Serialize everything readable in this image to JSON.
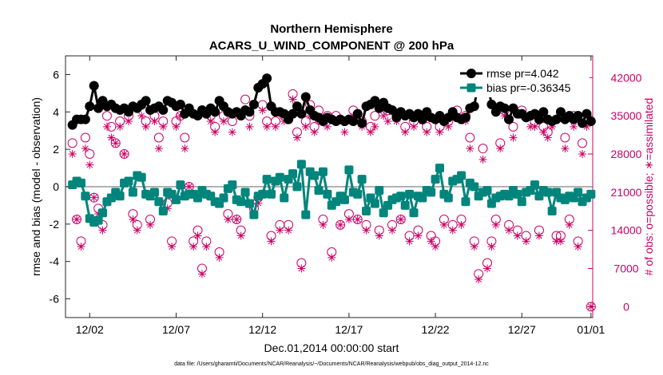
{
  "chart_data": {
    "type": "line",
    "title": "Northern Hemisphere",
    "subtitle": "ACARS_U_WIND_COMPONENT @ 200 hPa",
    "xlabel": "Dec.01,2014 00:00:00 start",
    "ylabel": "rmse and bias (model - observation)",
    "ylabel_right": "# of obs: o=possible; ∗=assimilated",
    "xlim": [
      0.6,
      31.1
    ],
    "ylim": [
      -7,
      7
    ],
    "ylim_right": [
      -2000,
      46000
    ],
    "x_ticks": [
      {
        "value": 2,
        "label": "12/02"
      },
      {
        "value": 7,
        "label": "12/07"
      },
      {
        "value": 12,
        "label": "12/12"
      },
      {
        "value": 17,
        "label": "12/17"
      },
      {
        "value": 22,
        "label": "12/22"
      },
      {
        "value": 27,
        "label": "12/27"
      },
      {
        "value": 31,
        "label": "01/01"
      }
    ],
    "y_ticks": [
      {
        "value": 6,
        "label": "6"
      },
      {
        "value": 4,
        "label": "4"
      },
      {
        "value": 2,
        "label": "2"
      },
      {
        "value": 0,
        "label": "0"
      },
      {
        "value": -2,
        "label": "-2"
      },
      {
        "value": -4,
        "label": "-4"
      },
      {
        "value": -6,
        "label": "-6"
      }
    ],
    "y_ticks_right": [
      {
        "value": 42000,
        "label": "42000"
      },
      {
        "value": 35000,
        "label": "35000"
      },
      {
        "value": 28000,
        "label": "28000"
      },
      {
        "value": 21000,
        "label": "21000"
      },
      {
        "value": 14000,
        "label": "14000"
      },
      {
        "value": 7000,
        "label": "7000"
      },
      {
        "value": 0,
        "label": "0"
      }
    ],
    "zero_line": 0,
    "series": [
      {
        "name": "rmse",
        "legend": "rmse pr=4.042",
        "color": "#000000",
        "marker": "circle",
        "x": [
          1.0,
          1.25,
          1.5,
          1.75,
          2.0,
          2.25,
          2.5,
          2.75,
          3.0,
          3.25,
          3.5,
          3.75,
          4.0,
          4.25,
          4.5,
          4.75,
          5.0,
          5.25,
          5.5,
          5.75,
          6.0,
          6.25,
          6.5,
          6.75,
          7.0,
          7.25,
          7.5,
          7.75,
          8.0,
          8.25,
          8.5,
          8.75,
          9.0,
          9.25,
          9.5,
          9.75,
          10.0,
          10.25,
          10.5,
          10.75,
          11.0,
          11.25,
          11.5,
          11.75,
          12.0,
          12.25,
          12.5,
          12.75,
          13.0,
          13.25,
          13.5,
          13.75,
          14.0,
          14.25,
          14.5,
          14.75,
          15.0,
          15.25,
          15.5,
          15.75,
          16.0,
          16.25,
          16.5,
          16.75,
          17.0,
          17.25,
          17.5,
          17.75,
          18.0,
          18.25,
          18.5,
          18.75,
          19.0,
          19.25,
          19.5,
          19.75,
          20.0,
          20.25,
          20.5,
          20.75,
          21.0,
          21.25,
          21.5,
          21.75,
          22.0,
          22.25,
          22.5,
          22.75,
          23.0,
          23.25,
          23.5,
          23.75,
          24.0,
          24.25,
          24.5,
          24.75,
          25.0,
          25.25,
          25.5,
          25.75,
          26.0,
          26.25,
          26.5,
          26.75,
          27.0,
          27.25,
          27.5,
          27.75,
          28.0,
          28.25,
          28.5,
          28.75,
          29.0,
          29.25,
          29.5,
          29.75,
          30.0,
          30.25,
          30.5,
          30.75,
          31.0
        ],
        "values": [
          3.3,
          3.6,
          3.6,
          3.6,
          4.3,
          5.4,
          4.2,
          4.6,
          4.3,
          4.4,
          4.2,
          4.1,
          4.2,
          4.0,
          4.3,
          4.2,
          4.4,
          4.6,
          4.1,
          4.2,
          4.3,
          4.1,
          4.6,
          4.5,
          4.3,
          4.4,
          3.9,
          4.2,
          3.9,
          3.8,
          4.1,
          3.9,
          4.2,
          4.0,
          4.6,
          4.3,
          4.0,
          3.9,
          4.0,
          3.8,
          4.1,
          4.0,
          4.4,
          5.3,
          5.5,
          5.8,
          4.3,
          4.0,
          4.0,
          3.9,
          3.6,
          3.9,
          4.3,
          3.9,
          4.8,
          4.1,
          3.8,
          3.7,
          3.5,
          3.7,
          3.6,
          3.5,
          3.6,
          3.5,
          3.6,
          3.5,
          3.9,
          3.4,
          4.3,
          4.4,
          4.6,
          4.2,
          4.5,
          4.2,
          4.1,
          3.7,
          4.0,
          3.8,
          3.9,
          3.7,
          3.9,
          3.6,
          4.0,
          3.7,
          3.6,
          3.8,
          3.5,
          3.7,
          4.0,
          3.7,
          3.6,
          3.7,
          4.2,
          4.3,
          5.7,
          6.0,
          5.6,
          4.4,
          4.0,
          4.3,
          4.2,
          3.6,
          4.2,
          3.9,
          3.9,
          3.7,
          3.8,
          3.9,
          3.6,
          4.0,
          3.6,
          3.5,
          3.6,
          4.0,
          3.6,
          3.8,
          3.6,
          3.8,
          3.4,
          3.9,
          3.5
        ]
      },
      {
        "name": "bias",
        "legend": "bias pr=-0.36345",
        "color": "#00857c",
        "marker": "square",
        "x": [
          1.0,
          1.25,
          1.5,
          1.75,
          2.0,
          2.25,
          2.5,
          2.75,
          3.0,
          3.25,
          3.5,
          3.75,
          4.0,
          4.25,
          4.5,
          4.75,
          5.0,
          5.25,
          5.5,
          5.75,
          6.0,
          6.25,
          6.5,
          6.75,
          7.0,
          7.25,
          7.5,
          7.75,
          8.0,
          8.25,
          8.5,
          8.75,
          9.0,
          9.25,
          9.5,
          9.75,
          10.0,
          10.25,
          10.5,
          10.75,
          11.0,
          11.25,
          11.5,
          11.75,
          12.0,
          12.25,
          12.5,
          12.75,
          13.0,
          13.25,
          13.5,
          13.75,
          14.0,
          14.25,
          14.5,
          14.75,
          15.0,
          15.25,
          15.5,
          15.75,
          16.0,
          16.25,
          16.5,
          16.75,
          17.0,
          17.25,
          17.5,
          17.75,
          18.0,
          18.25,
          18.5,
          18.75,
          19.0,
          19.25,
          19.5,
          19.75,
          20.0,
          20.25,
          20.5,
          20.75,
          21.0,
          21.25,
          21.5,
          21.75,
          22.0,
          22.25,
          22.5,
          22.75,
          23.0,
          23.25,
          23.5,
          23.75,
          24.0,
          24.25,
          24.5,
          24.75,
          25.0,
          25.25,
          25.5,
          25.75,
          26.0,
          26.25,
          26.5,
          26.75,
          27.0,
          27.25,
          27.5,
          27.75,
          28.0,
          28.25,
          28.5,
          28.75,
          29.0,
          29.25,
          29.5,
          29.75,
          30.0,
          30.25,
          30.5,
          30.75,
          31.0
        ],
        "values": [
          0.1,
          0.3,
          0.2,
          -0.5,
          -1.7,
          -1.9,
          -1.8,
          -1.4,
          -0.8,
          -0.6,
          -0.3,
          -0.5,
          0.2,
          0.3,
          -0.3,
          0.6,
          0.5,
          -0.4,
          -0.5,
          -0.3,
          -0.8,
          -1.3,
          -0.3,
          -0.4,
          -0.7,
          0.1,
          -0.5,
          -0.4,
          -0.4,
          -0.6,
          -0.2,
          -0.4,
          -0.5,
          -0.8,
          -0.9,
          -0.6,
          -0.1,
          0.1,
          -0.7,
          -0.8,
          -0.3,
          -0.9,
          -1.5,
          -0.5,
          -0.4,
          0.4,
          -0.4,
          0.3,
          0.5,
          -0.6,
          0.4,
          0.7,
          0.0,
          1.2,
          -1.5,
          0.8,
          0.6,
          -0.2,
          0.8,
          -0.4,
          -1.0,
          -0.8,
          -0.5,
          -0.7,
          0.9,
          -0.3,
          -0.4,
          0.4,
          -1.3,
          -0.6,
          -0.9,
          -0.2,
          -1.4,
          -1.0,
          -0.7,
          -0.6,
          -0.5,
          -1.0,
          -0.4,
          -1.4,
          -0.5,
          -0.6,
          -0.2,
          -0.3,
          0.4,
          1.0,
          -0.4,
          -0.6,
          0.3,
          0.4,
          0.6,
          -0.8,
          0.2,
          0.0,
          -0.5,
          -0.3,
          -0.2,
          -0.9,
          -0.6,
          -0.5,
          -0.4,
          -0.5,
          -0.2,
          -0.4,
          -0.8,
          -0.3,
          -0.2,
          0.1,
          -0.5,
          -0.2,
          -0.3,
          -1.3,
          -0.3,
          -0.6,
          -0.7,
          -0.5,
          -0.6,
          -0.3,
          -0.8,
          -0.6,
          -0.4
        ]
      },
      {
        "name": "obs possible",
        "legend": "",
        "color": "#cc0066",
        "marker": "open-circle",
        "axis": "right",
        "x": [
          1.0,
          1.25,
          1.5,
          1.75,
          2.0,
          2.25,
          2.5,
          2.75,
          3.0,
          3.25,
          3.5,
          3.75,
          4.0,
          4.25,
          4.5,
          4.75,
          5.0,
          5.25,
          5.5,
          5.75,
          6.0,
          6.25,
          6.5,
          6.75,
          7.0,
          7.25,
          7.5,
          7.75,
          8.0,
          8.25,
          8.5,
          8.75,
          9.0,
          9.25,
          9.5,
          9.75,
          10.0,
          10.25,
          10.5,
          10.75,
          11.0,
          11.25,
          11.5,
          11.75,
          12.0,
          12.25,
          12.5,
          12.75,
          13.0,
          13.25,
          13.5,
          13.75,
          14.0,
          14.25,
          14.5,
          14.75,
          15.0,
          15.25,
          15.5,
          15.75,
          16.0,
          16.25,
          16.5,
          16.75,
          17.0,
          17.25,
          17.5,
          17.75,
          18.0,
          18.25,
          18.5,
          18.75,
          19.0,
          19.25,
          19.5,
          19.75,
          20.0,
          20.25,
          20.5,
          20.75,
          21.0,
          21.25,
          21.5,
          21.75,
          22.0,
          22.25,
          22.5,
          22.75,
          23.0,
          23.25,
          23.5,
          23.75,
          24.0,
          24.25,
          24.5,
          24.75,
          25.0,
          25.25,
          25.5,
          25.75,
          26.0,
          26.25,
          26.5,
          26.75,
          27.0,
          27.25,
          27.5,
          27.75,
          28.0,
          28.25,
          28.5,
          28.75,
          29.0,
          29.25,
          29.5,
          29.75,
          30.0,
          30.25,
          30.5,
          30.75,
          31.0
        ],
        "values": [
          30000,
          16000,
          12000,
          31000,
          28000,
          20000,
          18000,
          15000,
          35000,
          33000,
          30000,
          34000,
          28000,
          35000,
          17000,
          15000,
          37000,
          34000,
          16000,
          35000,
          31000,
          34000,
          19000,
          12000,
          34000,
          35000,
          31000,
          22000,
          12000,
          14000,
          7000,
          12000,
          35000,
          33000,
          10000,
          35000,
          17000,
          34000,
          16000,
          14000,
          38000,
          35000,
          18000,
          20000,
          37000,
          34000,
          13000,
          34000,
          15000,
          35000,
          15000,
          39000,
          32000,
          8000,
          34000,
          37000,
          33000,
          36000,
          16000,
          35000,
          10000,
          35000,
          15000,
          34000,
          17000,
          36000,
          16000,
          34000,
          15000,
          33000,
          35000,
          14000,
          37000,
          36000,
          15000,
          35000,
          16000,
          33000,
          13000,
          34000,
          14000,
          35000,
          33000,
          13000,
          12000,
          33000,
          16000,
          34000,
          15000,
          36000,
          16000,
          35000,
          31000,
          12000,
          6000,
          29000,
          8000,
          12000,
          16000,
          30000,
          36000,
          15000,
          33000,
          14000,
          36000,
          13000,
          35000,
          34000,
          14000,
          33000,
          32000,
          34000,
          13000,
          13000,
          31000,
          16000,
          35000,
          12000,
          30000,
          34000,
          0
        ]
      },
      {
        "name": "obs assimilated",
        "legend": "",
        "color": "#cc0066",
        "marker": "asterisk",
        "axis": "right",
        "x": [
          1.0,
          1.25,
          1.5,
          1.75,
          2.0,
          2.25,
          2.5,
          2.75,
          3.0,
          3.25,
          3.5,
          3.75,
          4.0,
          4.25,
          4.5,
          4.75,
          5.0,
          5.25,
          5.5,
          5.75,
          6.0,
          6.25,
          6.5,
          6.75,
          7.0,
          7.25,
          7.5,
          7.75,
          8.0,
          8.25,
          8.5,
          8.75,
          9.0,
          9.25,
          9.5,
          9.75,
          10.0,
          10.25,
          10.5,
          10.75,
          11.0,
          11.25,
          11.5,
          11.75,
          12.0,
          12.25,
          12.5,
          12.75,
          13.0,
          13.25,
          13.5,
          13.75,
          14.0,
          14.25,
          14.5,
          14.75,
          15.0,
          15.25,
          15.5,
          15.75,
          16.0,
          16.25,
          16.5,
          16.75,
          17.0,
          17.25,
          17.5,
          17.75,
          18.0,
          18.25,
          18.5,
          18.75,
          19.0,
          19.25,
          19.5,
          19.75,
          20.0,
          20.25,
          20.5,
          20.75,
          21.0,
          21.25,
          21.5,
          21.75,
          22.0,
          22.25,
          22.5,
          22.75,
          23.0,
          23.25,
          23.5,
          23.75,
          24.0,
          24.25,
          24.5,
          24.75,
          25.0,
          25.25,
          25.5,
          25.75,
          26.0,
          26.25,
          26.5,
          26.75,
          27.0,
          27.25,
          27.5,
          27.75,
          28.0,
          28.25,
          28.5,
          28.75,
          29.0,
          29.25,
          29.5,
          29.75,
          30.0,
          30.25,
          30.5,
          30.75,
          31.0
        ],
        "values": [
          28000,
          16000,
          11000,
          29000,
          26000,
          20000,
          17000,
          14000,
          33000,
          31000,
          30000,
          33000,
          28000,
          34000,
          16000,
          14000,
          35000,
          33000,
          15000,
          34000,
          29000,
          33000,
          18000,
          11000,
          33000,
          35000,
          29000,
          22000,
          11000,
          13000,
          6000,
          11000,
          34000,
          32000,
          9000,
          34000,
          16000,
          32000,
          16000,
          13000,
          36000,
          33000,
          17000,
          19000,
          36000,
          33000,
          12000,
          33000,
          14000,
          34000,
          14000,
          38000,
          31000,
          7000,
          33000,
          35000,
          32000,
          34000,
          15000,
          33000,
          9000,
          34000,
          15000,
          32000,
          16000,
          35000,
          16000,
          33000,
          14000,
          32000,
          33000,
          13000,
          35000,
          34000,
          14000,
          34000,
          16000,
          32000,
          12000,
          33000,
          13000,
          34000,
          32000,
          12000,
          11000,
          32000,
          15000,
          33000,
          14000,
          35000,
          15000,
          34000,
          29000,
          11000,
          5000,
          27000,
          7000,
          11000,
          15000,
          29000,
          35000,
          14000,
          31000,
          13000,
          35000,
          12000,
          33000,
          33000,
          13000,
          32000,
          31000,
          33000,
          12000,
          12000,
          29000,
          15000,
          33000,
          11000,
          28000,
          33000,
          0
        ]
      }
    ],
    "footer": "data file: /Users/gharamti/Documents/NCAR/Reanalysis/~/Documents/NCAR/Reanalysis/webpub/obs_diag_output_2014-12.nc",
    "colors": {
      "left_axis": "#000000",
      "right_axis": "#cc0066",
      "zero_line": "#b0b0b0"
    }
  }
}
